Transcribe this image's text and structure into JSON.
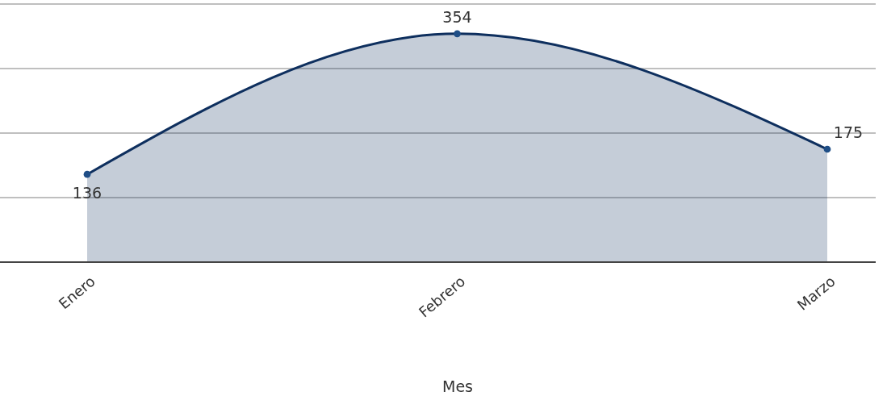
{
  "chart_data": {
    "type": "area",
    "xlabel": "Mes",
    "categories": [
      "Enero",
      "Febrero",
      "Marzo"
    ],
    "series": [
      {
        "color": "#0e2f5e",
        "values": [
          136,
          354,
          175
        ]
      }
    ],
    "ylim": [
      0,
      400
    ],
    "yticks": [
      {
        "value": 0,
        "label": null
      },
      {
        "value": 100,
        "label": null
      },
      {
        "value": 200,
        "label": null
      },
      {
        "value": 300,
        "label": null
      },
      {
        "value": 400,
        "label": null
      }
    ],
    "grid": "y",
    "tick_labels": "x",
    "marker": "circle",
    "data_labels": true
  }
}
